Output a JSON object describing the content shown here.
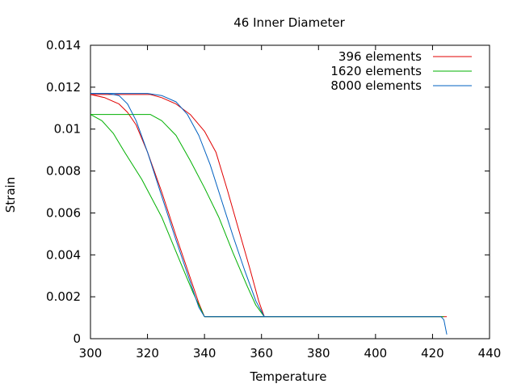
{
  "chart_data": {
    "type": "line",
    "title": "46 Inner Diameter",
    "xlabel": "Temperature",
    "ylabel": "Strain",
    "xlim": [
      300,
      440
    ],
    "ylim": [
      0,
      0.014
    ],
    "x_ticks": [
      300,
      320,
      340,
      360,
      380,
      400,
      420,
      440
    ],
    "y_ticks": [
      0,
      0.002,
      0.004,
      0.006,
      0.008,
      0.01,
      0.012,
      0.014
    ],
    "x_tick_labels": [
      "300",
      "320",
      "340",
      "360",
      "380",
      "400",
      "420",
      "440"
    ],
    "y_tick_labels": [
      "0",
      "0.002",
      "0.004",
      "0.006",
      "0.008",
      "0.01",
      "0.012",
      "0.014"
    ],
    "grid": false,
    "legend_position": "top-right",
    "series": [
      {
        "name": "396 elements",
        "color": "#e00000",
        "curves": [
          [
            [
              300,
              0.01165
            ],
            [
              305,
              0.0115
            ],
            [
              310,
              0.0112
            ],
            [
              313,
              0.0108
            ],
            [
              316,
              0.0102
            ],
            [
              320,
              0.0089
            ],
            [
              325,
              0.007
            ],
            [
              330,
              0.0049
            ],
            [
              335,
              0.0029
            ],
            [
              338,
              0.0017
            ],
            [
              340,
              0.00105
            ]
          ],
          [
            [
              300,
              0.01165
            ],
            [
              310,
              0.01165
            ],
            [
              321,
              0.01165
            ],
            [
              325,
              0.0115
            ],
            [
              330,
              0.0112
            ],
            [
              335,
              0.0107
            ],
            [
              340,
              0.0099
            ],
            [
              344,
              0.0089
            ],
            [
              348,
              0.0071
            ],
            [
              352,
              0.0052
            ],
            [
              356,
              0.0033
            ],
            [
              359,
              0.0018
            ],
            [
              361,
              0.00105
            ]
          ],
          [
            [
              340,
              0.00105
            ],
            [
              361,
              0.00105
            ],
            [
              400,
              0.00105
            ],
            [
              425,
              0.00105
            ]
          ]
        ]
      },
      {
        "name": "1620 elements",
        "color": "#00b000",
        "curves": [
          [
            [
              300,
              0.0107
            ],
            [
              304,
              0.0104
            ],
            [
              308,
              0.0098
            ],
            [
              312,
              0.0089
            ],
            [
              318,
              0.0076
            ],
            [
              325,
              0.0058
            ],
            [
              332,
              0.0035
            ],
            [
              336,
              0.0022
            ],
            [
              340,
              0.00105
            ]
          ],
          [
            [
              300,
              0.0107
            ],
            [
              310,
              0.0107
            ],
            [
              321,
              0.0107
            ],
            [
              325,
              0.0104
            ],
            [
              330,
              0.0097
            ],
            [
              335,
              0.0085
            ],
            [
              340,
              0.0072
            ],
            [
              345,
              0.0058
            ],
            [
              350,
              0.0041
            ],
            [
              355,
              0.0025
            ],
            [
              358,
              0.0016
            ],
            [
              361,
              0.00105
            ]
          ],
          [
            [
              340,
              0.00105
            ],
            [
              361,
              0.00105
            ],
            [
              400,
              0.00105
            ],
            [
              424,
              0.00105
            ]
          ]
        ]
      },
      {
        "name": "8000 elements",
        "color": "#0060c0",
        "curves": [
          [
            [
              300,
              0.0117
            ],
            [
              306,
              0.0117
            ],
            [
              310,
              0.0116
            ],
            [
              313,
              0.0112
            ],
            [
              316,
              0.0104
            ],
            [
              320,
              0.0089
            ],
            [
              325,
              0.0068
            ],
            [
              330,
              0.0047
            ],
            [
              335,
              0.0027
            ],
            [
              338,
              0.0015
            ],
            [
              340,
              0.00105
            ]
          ],
          [
            [
              300,
              0.0117
            ],
            [
              310,
              0.0117
            ],
            [
              320,
              0.0117
            ],
            [
              325,
              0.0116
            ],
            [
              330,
              0.0113
            ],
            [
              334,
              0.0107
            ],
            [
              338,
              0.0097
            ],
            [
              342,
              0.0083
            ],
            [
              346,
              0.0066
            ],
            [
              350,
              0.0049
            ],
            [
              354,
              0.0033
            ],
            [
              358,
              0.0018
            ],
            [
              361,
              0.00105
            ]
          ],
          [
            [
              340,
              0.00105
            ],
            [
              361,
              0.00105
            ],
            [
              400,
              0.00105
            ],
            [
              423,
              0.00105
            ],
            [
              424,
              0.0009
            ],
            [
              425,
              0.0002
            ]
          ]
        ]
      }
    ]
  }
}
